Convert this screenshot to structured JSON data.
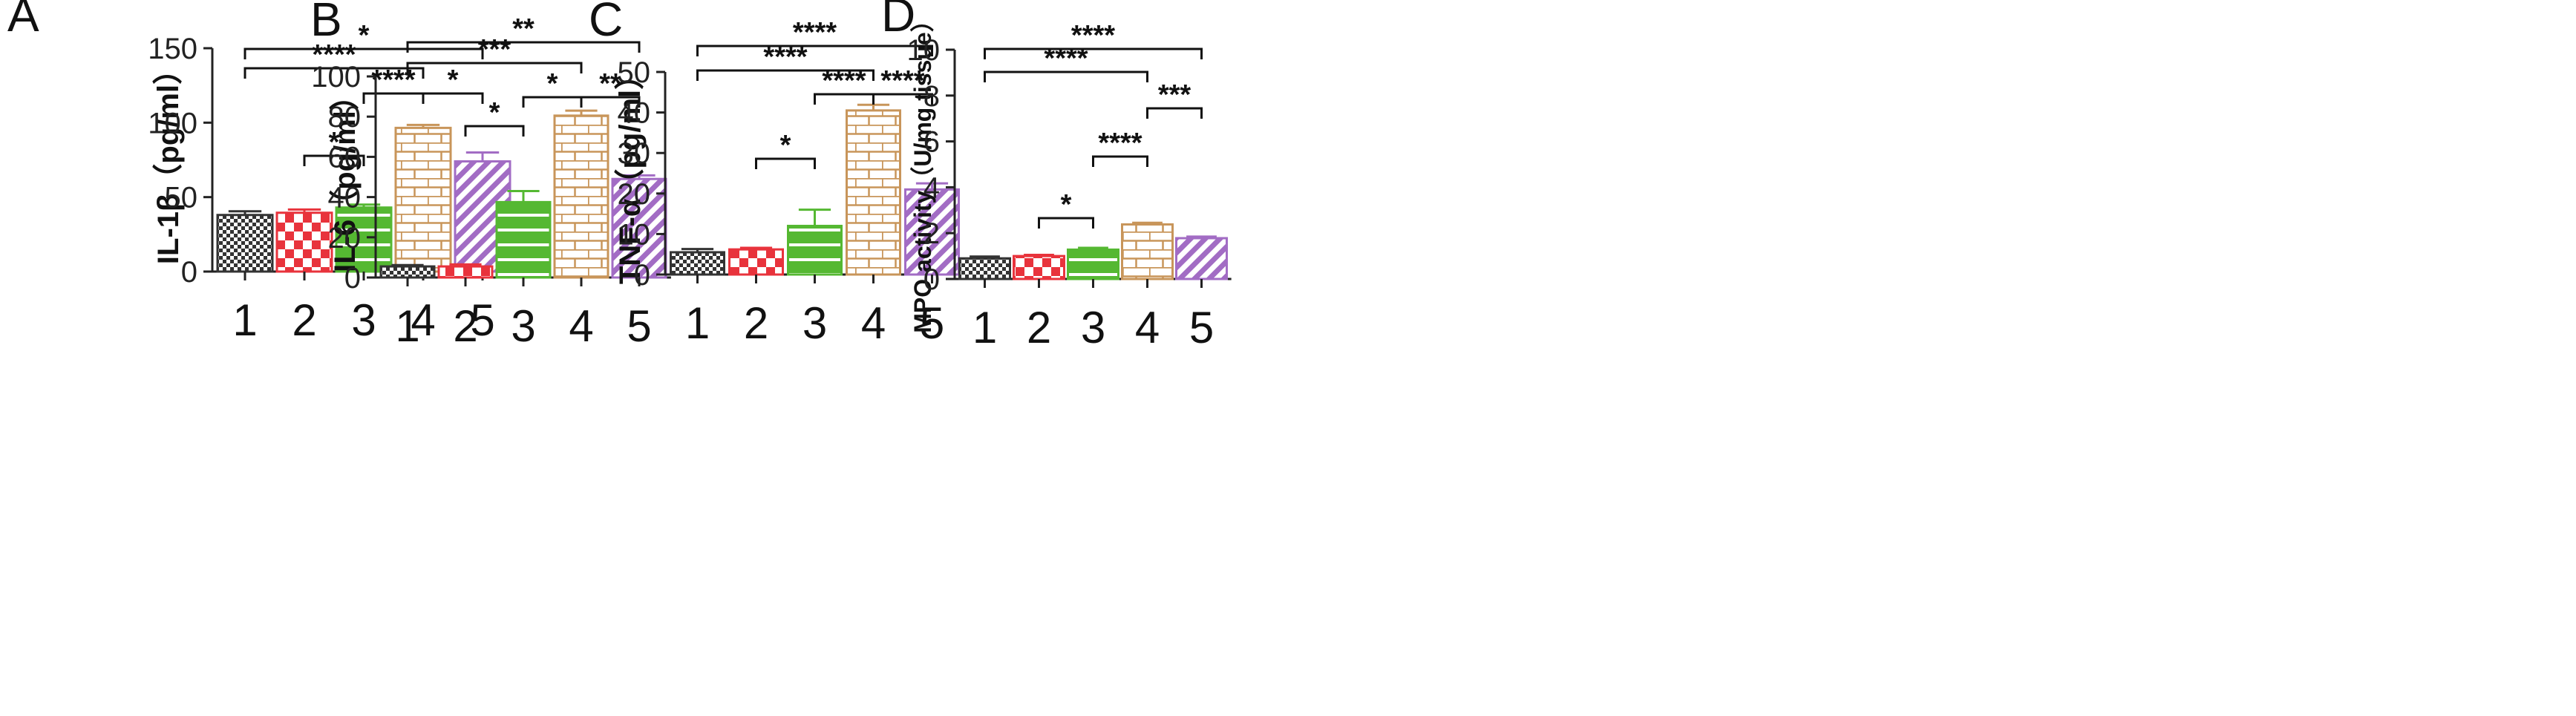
{
  "figure": {
    "colors": {
      "axis": "#222222",
      "bracket": "#111111",
      "group1": "#333333",
      "group2": "#e8333c",
      "group3": "#55b832",
      "group4": "#c8955a",
      "group5": "#a26cc4"
    }
  },
  "chart_data": [
    {
      "type": "bar",
      "panel_letter": "A",
      "ylabel": "IL-1β（pg/ml）",
      "categories": [
        "1",
        "2",
        "3",
        "4",
        "5"
      ],
      "values": [
        38,
        39.5,
        43,
        96.5,
        74
      ],
      "errors": [
        2.5,
        2.2,
        2.0,
        2.0,
        6.0
      ],
      "ylim": [
        0,
        150
      ],
      "yticks": [
        "0",
        "50",
        "100",
        "150"
      ],
      "comparisons": [
        {
          "from": 3,
          "to": 2,
          "level": 1,
          "label": "*"
        },
        {
          "from": 3,
          "to": 4,
          "level": 2,
          "label": "****"
        },
        {
          "from": 4,
          "to": 5,
          "level": 2,
          "label": "*"
        },
        {
          "from": 1,
          "to": 4,
          "level": 3,
          "label": "****"
        },
        {
          "from": 1,
          "to": 5,
          "level": 4,
          "label": "*"
        }
      ]
    },
    {
      "type": "bar",
      "panel_letter": "B",
      "ylabel": "IL-6（pg/ml）",
      "categories": [
        "1",
        "2",
        "3",
        "4",
        "5"
      ],
      "values": [
        5.5,
        5.5,
        37.5,
        80.5,
        49
      ],
      "errors": [
        0.7,
        1.0,
        5.5,
        2.5,
        1.8
      ],
      "ylim": [
        0,
        100
      ],
      "yticks": [
        "0",
        "20",
        "40",
        "60",
        "80",
        "100"
      ],
      "comparisons": [
        {
          "from": 2,
          "to": 3,
          "level": 1,
          "label": "*"
        },
        {
          "from": 3,
          "to": 4,
          "level": 2,
          "label": "*"
        },
        {
          "from": 4,
          "to": 5,
          "level": 2,
          "label": "**"
        },
        {
          "from": 1,
          "to": 4,
          "level": 3,
          "label": "***"
        },
        {
          "from": 1,
          "to": 5,
          "level": 4,
          "label": "**"
        }
      ]
    },
    {
      "type": "bar",
      "panel_letter": "C",
      "ylabel": "TNF-α（pg/ml）",
      "categories": [
        "1",
        "2",
        "3",
        "4",
        "5"
      ],
      "values": [
        5.5,
        6.2,
        12,
        40.5,
        21
      ],
      "errors": [
        0.8,
        0.4,
        4.0,
        1.4,
        1.5
      ],
      "ylim": [
        0,
        50
      ],
      "yticks": [
        "0",
        "10",
        "20",
        "30",
        "40",
        "50"
      ],
      "comparisons": [
        {
          "from": 2,
          "to": 3,
          "level": 1,
          "label": "*"
        },
        {
          "from": 3,
          "to": 4,
          "level": 2,
          "label": "****"
        },
        {
          "from": 4,
          "to": 5,
          "level": 2,
          "label": "****"
        },
        {
          "from": 1,
          "to": 4,
          "level": 3,
          "label": "****"
        },
        {
          "from": 1,
          "to": 5,
          "level": 4,
          "label": "****"
        }
      ]
    },
    {
      "type": "bar",
      "panel_letter": "D",
      "ylabel": "MPO activity（U/mg tissue）",
      "categories": [
        "1",
        "2",
        "3",
        "4",
        "5"
      ],
      "values": [
        0.9,
        1.0,
        1.28,
        2.38,
        1.78
      ],
      "errors": [
        0.08,
        0.05,
        0.08,
        0.07,
        0.07
      ],
      "ylim": [
        0,
        10
      ],
      "yticks": [
        "0",
        "2",
        "4",
        "6",
        "8",
        "10"
      ],
      "comparisons": [
        {
          "from": 2,
          "to": 3,
          "level": 1,
          "label": "*"
        },
        {
          "from": 3,
          "to": 4,
          "level": 2,
          "label": "****"
        },
        {
          "from": 4,
          "to": 5,
          "level": 3,
          "label": "***"
        },
        {
          "from": 1,
          "to": 4,
          "level": 4,
          "label": "****"
        },
        {
          "from": 1,
          "to": 5,
          "level": 5,
          "label": "****"
        }
      ]
    }
  ]
}
